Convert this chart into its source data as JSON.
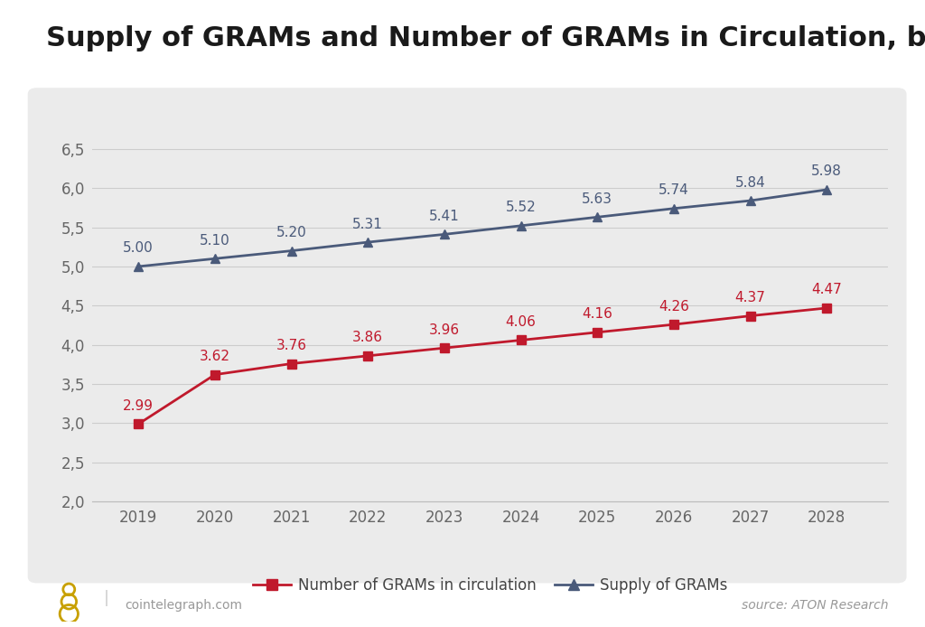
{
  "title": "Supply of GRAMs and Number of GRAMs in Circulation, bn",
  "years": [
    2019,
    2020,
    2021,
    2022,
    2023,
    2024,
    2025,
    2026,
    2027,
    2028
  ],
  "supply": [
    5.0,
    5.1,
    5.2,
    5.31,
    5.41,
    5.52,
    5.63,
    5.74,
    5.84,
    5.98
  ],
  "circulation": [
    2.99,
    3.62,
    3.76,
    3.86,
    3.96,
    4.06,
    4.16,
    4.26,
    4.37,
    4.47
  ],
  "supply_color": "#4a5a7a",
  "circulation_color": "#c0192c",
  "supply_label": "Supply of GRAMs",
  "circulation_label": "Number of GRAMs in circulation",
  "ylim": [
    2.0,
    6.8
  ],
  "yticks": [
    2.0,
    2.5,
    3.0,
    3.5,
    4.0,
    4.5,
    5.0,
    5.5,
    6.0,
    6.5
  ],
  "ytick_labels": [
    "2,0",
    "2,5",
    "3,0",
    "3,5",
    "4,0",
    "4,5",
    "5,0",
    "5,5",
    "6,0",
    "6,5"
  ],
  "panel_bg_color": "#ebebeb",
  "outer_bg": "#ffffff",
  "source_text": "source: ATON Research",
  "watermark_text": "cointelegraph.com",
  "title_fontsize": 22,
  "tick_fontsize": 12,
  "annotation_fontsize": 11,
  "legend_fontsize": 12
}
